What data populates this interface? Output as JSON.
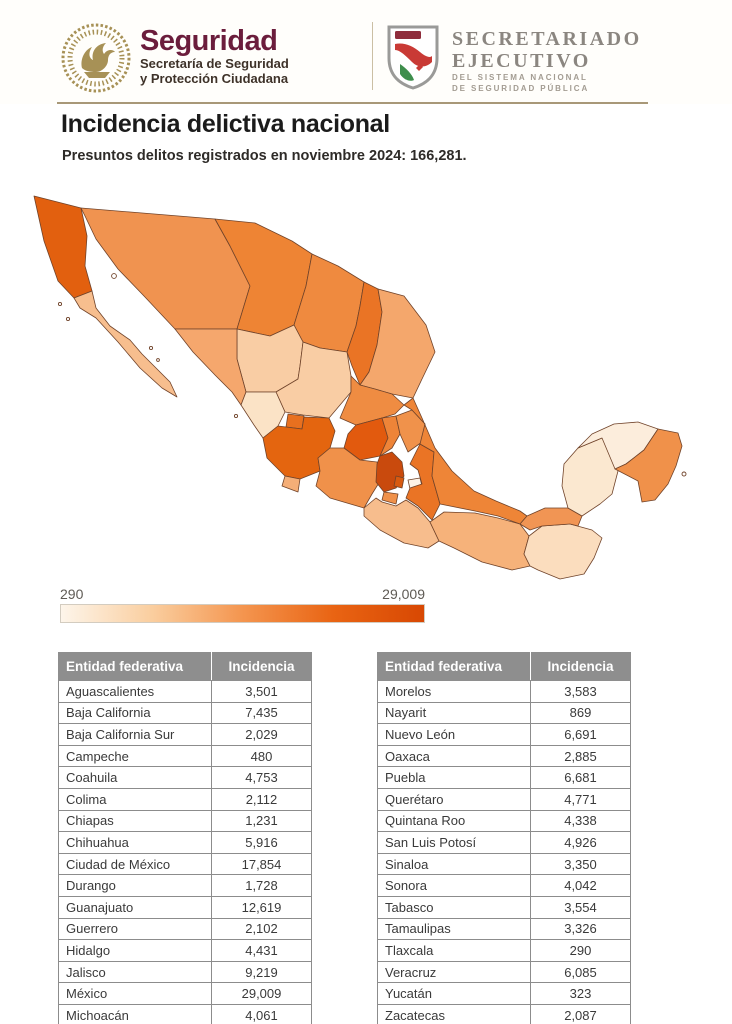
{
  "header": {
    "left_logo": {
      "brand": "Seguridad",
      "sub1": "Secretaría de Seguridad",
      "sub2": "y Protección Ciudadana"
    },
    "right_logo": {
      "line1": "SECRETARIADO",
      "line2": "EJECUTIVO",
      "sub1": "DEL SISTEMA NACIONAL",
      "sub2": "DE SEGURIDAD PÚBLICA"
    }
  },
  "title": "Incidencia delictiva nacional",
  "subtitle": "Presuntos delitos registrados en noviembre 2024: 166,281.",
  "legend": {
    "min_label": "290",
    "max_label": "29,009",
    "gradient": [
      "#FDF5EA",
      "#FACE9F",
      "#F4954F",
      "#E96413",
      "#D84803"
    ]
  },
  "tables": {
    "col_entity": "Entidad federativa",
    "col_incidence": "Incidencia",
    "left": [
      {
        "name": "Aguascalientes",
        "value": "3,501"
      },
      {
        "name": "Baja California",
        "value": "7,435"
      },
      {
        "name": "Baja California Sur",
        "value": "2,029"
      },
      {
        "name": "Campeche",
        "value": "480"
      },
      {
        "name": "Coahuila",
        "value": "4,753"
      },
      {
        "name": "Colima",
        "value": "2,112"
      },
      {
        "name": "Chiapas",
        "value": "1,231"
      },
      {
        "name": "Chihuahua",
        "value": "5,916"
      },
      {
        "name": "Ciudad de México",
        "value": "17,854"
      },
      {
        "name": "Durango",
        "value": "1,728"
      },
      {
        "name": "Guanajuato",
        "value": "12,619"
      },
      {
        "name": "Guerrero",
        "value": "2,102"
      },
      {
        "name": "Hidalgo",
        "value": "4,431"
      },
      {
        "name": "Jalisco",
        "value": "9,219"
      },
      {
        "name": "México",
        "value": "29,009"
      },
      {
        "name": "Michoacán",
        "value": "4,061"
      }
    ],
    "right": [
      {
        "name": "Morelos",
        "value": "3,583"
      },
      {
        "name": "Nayarit",
        "value": "869"
      },
      {
        "name": "Nuevo León",
        "value": "6,691"
      },
      {
        "name": "Oaxaca",
        "value": "2,885"
      },
      {
        "name": "Puebla",
        "value": "6,681"
      },
      {
        "name": "Querétaro",
        "value": "4,771"
      },
      {
        "name": "Quintana Roo",
        "value": "4,338"
      },
      {
        "name": "San Luis Potosí",
        "value": "4,926"
      },
      {
        "name": "Sinaloa",
        "value": "3,350"
      },
      {
        "name": "Sonora",
        "value": "4,042"
      },
      {
        "name": "Tabasco",
        "value": "3,554"
      },
      {
        "name": "Tamaulipas",
        "value": "3,326"
      },
      {
        "name": "Tlaxcala",
        "value": "290"
      },
      {
        "name": "Veracruz",
        "value": "6,085"
      },
      {
        "name": "Yucatán",
        "value": "323"
      },
      {
        "name": "Zacatecas",
        "value": "2,087"
      }
    ]
  },
  "chart_data": {
    "type": "choropleth-map",
    "region": "Mexico (32 entidades federativas)",
    "title": "Incidencia delictiva nacional",
    "value_label": "Presuntos delitos registrados, noviembre 2024",
    "total": 166281,
    "scale": {
      "min": 290,
      "max": 29009
    },
    "states": [
      {
        "id": "ags",
        "name": "Aguascalientes",
        "value": 3501,
        "color": "#E8701F"
      },
      {
        "id": "bc",
        "name": "Baja California",
        "value": 7435,
        "color": "#E2600F"
      },
      {
        "id": "bcs",
        "name": "Baja California Sur",
        "value": 2029,
        "color": "#F7BE8E"
      },
      {
        "id": "camp",
        "name": "Campeche",
        "value": 480,
        "color": "#FBE8D0"
      },
      {
        "id": "coah",
        "name": "Coahuila",
        "value": 4753,
        "color": "#EF8A3F"
      },
      {
        "id": "col",
        "name": "Colima",
        "value": 2112,
        "color": "#F5AE77"
      },
      {
        "id": "chis",
        "name": "Chiapas",
        "value": 1231,
        "color": "#FBDDBE"
      },
      {
        "id": "chih",
        "name": "Chihuahua",
        "value": 5916,
        "color": "#EE8434"
      },
      {
        "id": "cdmx",
        "name": "Ciudad de México",
        "value": 17854,
        "color": "#D85A10"
      },
      {
        "id": "dgo",
        "name": "Durango",
        "value": 1728,
        "color": "#F9CDA4"
      },
      {
        "id": "gto",
        "name": "Guanajuato",
        "value": 12619,
        "color": "#E25A0E"
      },
      {
        "id": "gro",
        "name": "Guerrero",
        "value": 2102,
        "color": "#F7BD8D"
      },
      {
        "id": "hgo",
        "name": "Hidalgo",
        "value": 4431,
        "color": "#F0924B"
      },
      {
        "id": "jal",
        "name": "Jalisco",
        "value": 9219,
        "color": "#E4650F"
      },
      {
        "id": "mex",
        "name": "México",
        "value": 29009,
        "color": "#C94A0D"
      },
      {
        "id": "mich",
        "name": "Michoacán",
        "value": 4061,
        "color": "#F0914A"
      },
      {
        "id": "mor",
        "name": "Morelos",
        "value": 3583,
        "color": "#F0914A"
      },
      {
        "id": "nay",
        "name": "Nayarit",
        "value": 869,
        "color": "#FBE3C6"
      },
      {
        "id": "nl",
        "name": "Nuevo León",
        "value": 6691,
        "color": "#EA7425"
      },
      {
        "id": "oax",
        "name": "Oaxaca",
        "value": 2885,
        "color": "#F6B27A"
      },
      {
        "id": "pue",
        "name": "Puebla",
        "value": 6681,
        "color": "#EA7425"
      },
      {
        "id": "qro",
        "name": "Querétaro",
        "value": 4771,
        "color": "#EE8438"
      },
      {
        "id": "qroo",
        "name": "Quintana Roo",
        "value": 4338,
        "color": "#F0914A"
      },
      {
        "id": "slp",
        "name": "San Luis Potosí",
        "value": 4926,
        "color": "#EF8C42"
      },
      {
        "id": "sin",
        "name": "Sinaloa",
        "value": 3350,
        "color": "#F5A76D"
      },
      {
        "id": "son",
        "name": "Sonora",
        "value": 4042,
        "color": "#F09350"
      },
      {
        "id": "tab",
        "name": "Tabasco",
        "value": 3554,
        "color": "#F19554"
      },
      {
        "id": "tamps",
        "name": "Tamaulipas",
        "value": 3326,
        "color": "#F4A76C"
      },
      {
        "id": "tlax",
        "name": "Tlaxcala",
        "value": 290,
        "color": "#FDF3E6"
      },
      {
        "id": "ver",
        "name": "Veracruz",
        "value": 6085,
        "color": "#EE8537"
      },
      {
        "id": "yuc",
        "name": "Yucatán",
        "value": 323,
        "color": "#FCEDDC"
      },
      {
        "id": "zac",
        "name": "Zacatecas",
        "value": 2087,
        "color": "#F9CDA4"
      }
    ]
  }
}
